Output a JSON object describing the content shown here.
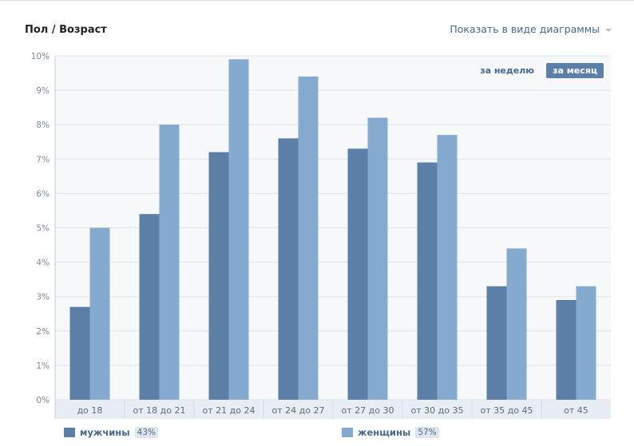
{
  "header": {
    "title": "Пол / Возраст",
    "view_toggle": "Показать в виде диаграммы"
  },
  "period": {
    "week": "за неделю",
    "month": "за месяц",
    "active": "month"
  },
  "legend": {
    "men": {
      "label": "мужчины",
      "share": "43%",
      "color": "#5b7fa6"
    },
    "women": {
      "label": "женщины",
      "share": "57%",
      "color": "#84abcf"
    }
  },
  "chart_data": {
    "type": "bar",
    "categories": [
      "до 18",
      "от 18 до 21",
      "от 21 до 24",
      "от 24 до 27",
      "от 27 до 30",
      "от 30 до 35",
      "от 35 до 45",
      "от 45"
    ],
    "series": [
      {
        "name": "мужчины",
        "color": "#5b7fa6",
        "values": [
          2.7,
          5.4,
          7.2,
          7.6,
          7.3,
          6.9,
          3.3,
          2.9
        ]
      },
      {
        "name": "женщины",
        "color": "#84abcf",
        "values": [
          5.0,
          8.0,
          9.9,
          9.4,
          8.2,
          7.7,
          4.4,
          3.3
        ]
      }
    ],
    "ylim": [
      0,
      10
    ],
    "yticks": [
      "0%",
      "1%",
      "2%",
      "3%",
      "4%",
      "5%",
      "6%",
      "7%",
      "8%",
      "9%",
      "10%"
    ],
    "grid": true,
    "legend_position": "bottom"
  }
}
